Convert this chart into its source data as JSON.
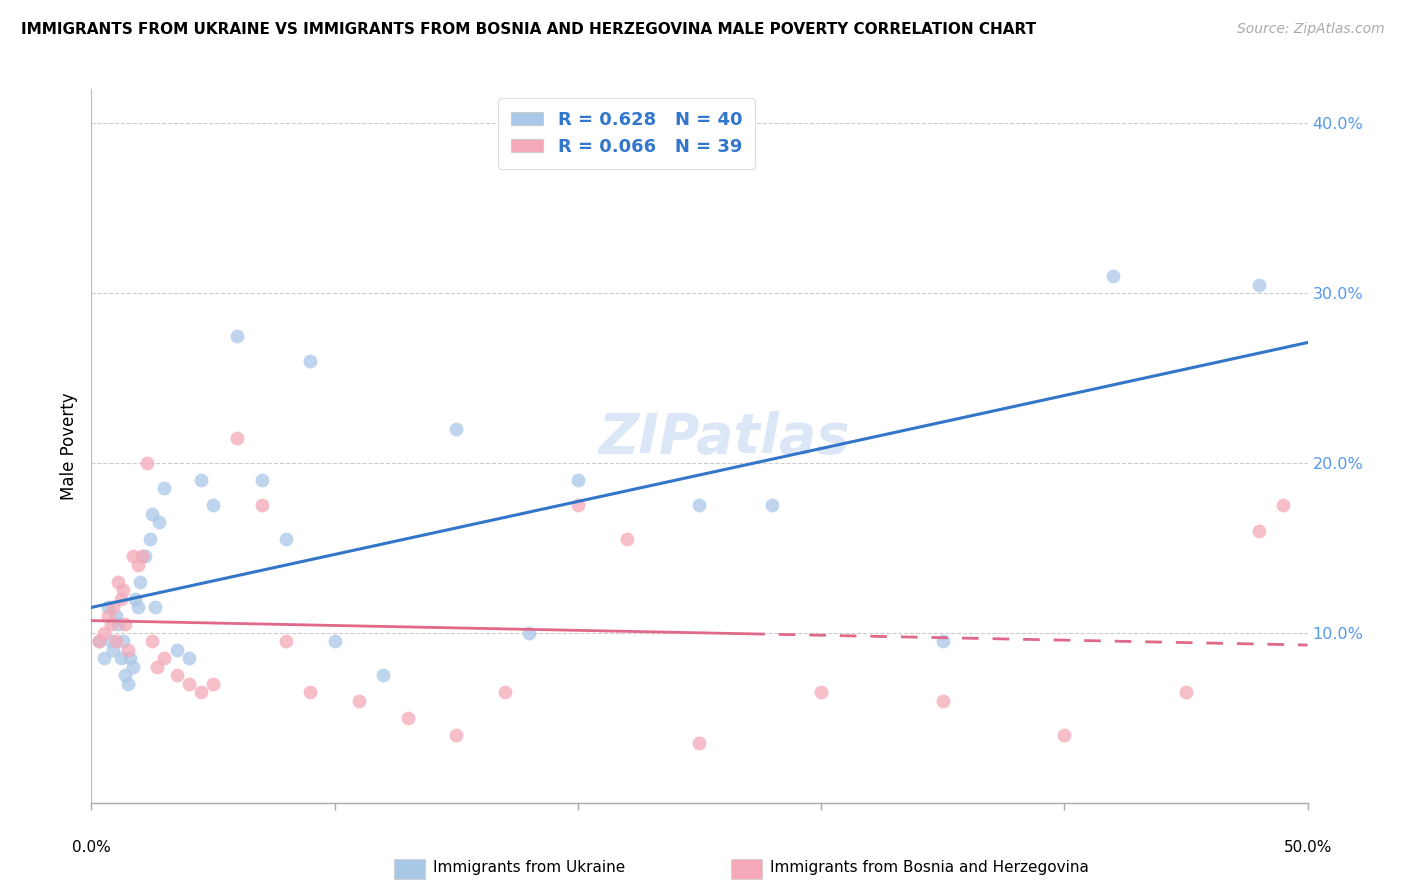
{
  "title": "IMMIGRANTS FROM UKRAINE VS IMMIGRANTS FROM BOSNIA AND HERZEGOVINA MALE POVERTY CORRELATION CHART",
  "source": "Source: ZipAtlas.com",
  "ylabel": "Male Poverty",
  "xlim": [
    0.0,
    0.5
  ],
  "ylim": [
    0.0,
    0.42
  ],
  "ytick_vals": [
    0.1,
    0.2,
    0.3,
    0.4
  ],
  "ytick_labels": [
    "10.0%",
    "20.0%",
    "30.0%",
    "40.0%"
  ],
  "ukraine_R": 0.628,
  "ukraine_N": 40,
  "bosnia_R": 0.066,
  "bosnia_N": 39,
  "ukraine_color": "#a8c8e8",
  "bosnia_color": "#f4a8b8",
  "ukraine_line_color": "#3375c8",
  "bosnia_line_color": "#e06888",
  "ukraine_legend_label": "Immigrants from Ukraine",
  "bosnia_legend_label": "Immigrants from Bosnia and Herzegovina",
  "ukraine_x": [
    0.003,
    0.005,
    0.007,
    0.008,
    0.009,
    0.01,
    0.011,
    0.012,
    0.013,
    0.014,
    0.015,
    0.016,
    0.017,
    0.018,
    0.019,
    0.02,
    0.022,
    0.024,
    0.025,
    0.026,
    0.028,
    0.03,
    0.035,
    0.04,
    0.045,
    0.05,
    0.06,
    0.07,
    0.08,
    0.09,
    0.1,
    0.12,
    0.15,
    0.18,
    0.2,
    0.25,
    0.28,
    0.35,
    0.42,
    0.48
  ],
  "ukraine_y": [
    0.095,
    0.085,
    0.115,
    0.095,
    0.09,
    0.11,
    0.105,
    0.085,
    0.095,
    0.075,
    0.07,
    0.085,
    0.08,
    0.12,
    0.115,
    0.13,
    0.145,
    0.155,
    0.17,
    0.115,
    0.165,
    0.185,
    0.09,
    0.085,
    0.19,
    0.175,
    0.275,
    0.19,
    0.155,
    0.26,
    0.095,
    0.075,
    0.22,
    0.1,
    0.19,
    0.175,
    0.175,
    0.095,
    0.31,
    0.305
  ],
  "bosnia_x": [
    0.003,
    0.005,
    0.007,
    0.008,
    0.009,
    0.01,
    0.011,
    0.012,
    0.013,
    0.014,
    0.015,
    0.017,
    0.019,
    0.021,
    0.023,
    0.025,
    0.027,
    0.03,
    0.035,
    0.04,
    0.045,
    0.05,
    0.06,
    0.07,
    0.08,
    0.09,
    0.11,
    0.13,
    0.15,
    0.17,
    0.2,
    0.22,
    0.25,
    0.3,
    0.35,
    0.4,
    0.45,
    0.48,
    0.49
  ],
  "bosnia_y": [
    0.095,
    0.1,
    0.11,
    0.105,
    0.115,
    0.095,
    0.13,
    0.12,
    0.125,
    0.105,
    0.09,
    0.145,
    0.14,
    0.145,
    0.2,
    0.095,
    0.08,
    0.085,
    0.075,
    0.07,
    0.065,
    0.07,
    0.215,
    0.175,
    0.095,
    0.065,
    0.06,
    0.05,
    0.04,
    0.065,
    0.175,
    0.155,
    0.035,
    0.065,
    0.06,
    0.04,
    0.065,
    0.16,
    0.175
  ]
}
